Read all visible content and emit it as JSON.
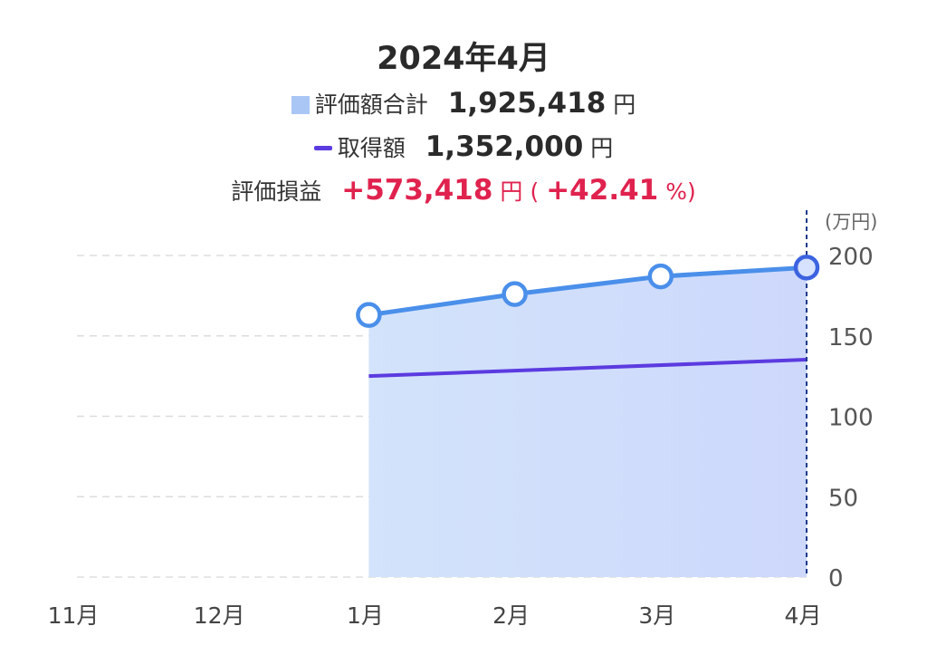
{
  "header": {
    "title": "2024年4月",
    "valuation_label": "評価額合計",
    "valuation_value": "1,925,418",
    "valuation_unit": "円",
    "cost_label": "取得額",
    "cost_value": "1,352,000",
    "cost_unit": "円",
    "pl_label": "評価損益",
    "pl_value": "+573,418",
    "pl_unit": "円",
    "pl_paren_open": "(",
    "pl_pct": "+42.41",
    "pl_pct_unit": "%)"
  },
  "colors": {
    "area_fill": "#a9c6f5",
    "valuation_line": "#4a8fea",
    "cost_line": "#5b3be0",
    "profit_red": "#e0224e",
    "grid": "#dddddd",
    "cursor": "#1e3a8a"
  },
  "chart_data": {
    "type": "area",
    "categories": [
      "11月",
      "12月",
      "1月",
      "2月",
      "3月",
      "4月"
    ],
    "y_unit_label": "(万円)",
    "ylim": [
      0,
      200
    ],
    "yticks": [
      "0",
      "50",
      "100",
      "150",
      "200"
    ],
    "grid": true,
    "series": [
      {
        "name": "評価額合計",
        "kind": "area-line-markers",
        "values": [
          null,
          null,
          163,
          176,
          187,
          192.5
        ]
      },
      {
        "name": "取得額",
        "kind": "line",
        "values": [
          null,
          null,
          125,
          null,
          null,
          135.2
        ]
      }
    ],
    "selected_category": "4月"
  }
}
